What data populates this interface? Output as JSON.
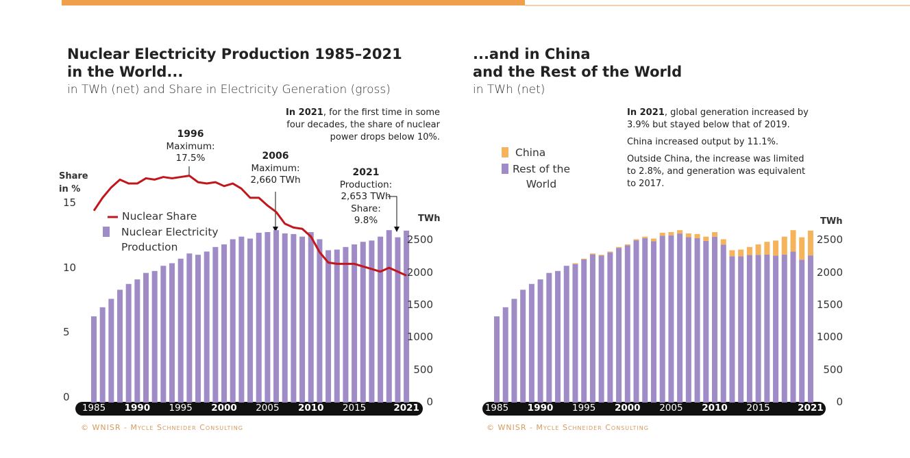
{
  "chart_data": [
    {
      "type": "bar_line",
      "title": [
        "Nuclear Electricity Production 1985–2021",
        "in the World..."
      ],
      "subtitle": "in TWh (net) and Share in Electricity Generation (gross)",
      "categories": [
        "1985",
        null,
        null,
        null,
        null,
        "1990",
        null,
        null,
        null,
        null,
        "1995",
        null,
        null,
        null,
        null,
        "2000",
        null,
        null,
        null,
        null,
        "2005",
        null,
        null,
        null,
        null,
        "2010",
        null,
        null,
        null,
        null,
        "2015",
        null,
        null,
        null,
        null,
        null,
        "2021"
      ],
      "series": [
        {
          "name": "Nuclear Electricity Production",
          "color": "#9f8bc6",
          "axis": "y2",
          "values": [
            1330,
            1470,
            1600,
            1740,
            1830,
            1900,
            2000,
            2030,
            2110,
            2150,
            2220,
            2300,
            2280,
            2330,
            2400,
            2440,
            2520,
            2560,
            2530,
            2620,
            2630,
            2660,
            2610,
            2600,
            2560,
            2630,
            2520,
            2350,
            2360,
            2400,
            2440,
            2480,
            2500,
            2560,
            2660,
            2550,
            2653
          ]
        },
        {
          "name": "Nuclear Share",
          "color": "#c0161c",
          "axis": "y",
          "values": [
            14.8,
            15.8,
            16.6,
            17.2,
            16.9,
            16.9,
            17.3,
            17.2,
            17.4,
            17.3,
            17.4,
            17.5,
            17.0,
            16.9,
            17.0,
            16.7,
            16.9,
            16.5,
            15.8,
            15.8,
            15.2,
            14.7,
            13.8,
            13.5,
            13.4,
            12.8,
            11.6,
            10.8,
            10.7,
            10.7,
            10.7,
            10.5,
            10.3,
            10.1,
            10.4,
            10.1,
            9.8
          ]
        }
      ],
      "ylabel": "Share in %",
      "ylim": [
        0,
        15
      ],
      "yticks": [
        0,
        5,
        10,
        15
      ],
      "y2label": "TWh",
      "y2lim": [
        0,
        3000
      ],
      "y2ticks": [
        0,
        500,
        1000,
        1500,
        2000,
        2500
      ],
      "annotations": [
        [
          "1996",
          "Maximum:",
          "17.5%"
        ],
        [
          "2006",
          "Maximum:",
          "2,660 TWh"
        ],
        [
          "2021",
          "Production:",
          "2,653 TWh",
          "Share:",
          "9.8%"
        ]
      ],
      "note": {
        "lead": "In 2021",
        "text": ", for the first time in some four decades, the share of nuclear power drops below 10%."
      },
      "source": "© WNISR - Mycle Schneider Consulting"
    },
    {
      "type": "stacked_bar",
      "title": [
        "...and in China",
        "and the Rest of the World"
      ],
      "subtitle": "in TWh (net)",
      "categories": [
        "1985",
        null,
        null,
        null,
        null,
        "1990",
        null,
        null,
        null,
        null,
        "1995",
        null,
        null,
        null,
        null,
        "2000",
        null,
        null,
        null,
        null,
        "2005",
        null,
        null,
        null,
        null,
        "2010",
        null,
        null,
        null,
        null,
        "2015",
        null,
        null,
        null,
        null,
        null,
        "2021"
      ],
      "series": [
        {
          "name": "Rest of the World",
          "color": "#9f8bc6",
          "values": [
            1330,
            1470,
            1600,
            1740,
            1830,
            1900,
            2000,
            2030,
            2110,
            2137,
            2208,
            2286,
            2266,
            2317,
            2386,
            2424,
            2503,
            2536,
            2488,
            2572,
            2580,
            2608,
            2551,
            2535,
            2494,
            2559,
            2438,
            2257,
            2255,
            2276,
            2279,
            2282,
            2267,
            2283,
            2330,
            2205,
            2270
          ]
        },
        {
          "name": "China",
          "color": "#f5b35c",
          "values": [
            0,
            0,
            0,
            0,
            0,
            0,
            0,
            0,
            0,
            13,
            12,
            14,
            14,
            13,
            14,
            16,
            17,
            24,
            42,
            48,
            50,
            52,
            59,
            65,
            66,
            71,
            82,
            93,
            105,
            124,
            161,
            198,
            233,
            277,
            330,
            345,
            383
          ]
        }
      ],
      "ylabel": "TWh",
      "ylim": [
        0,
        3000
      ],
      "yticks": [
        0,
        500,
        1000,
        1500,
        2000,
        2500
      ],
      "notes": [
        {
          "lead": "In 2021",
          "text": ", global generation increased by 3.9% but stayed below that of 2019."
        },
        {
          "text": "China increased output by 11.1%."
        },
        {
          "text": "Outside China, the increase was limited to 2.8%, and generation was equivalent to 2017."
        }
      ],
      "source": "© WNISR - Mycle Schneider Consulting"
    }
  ]
}
